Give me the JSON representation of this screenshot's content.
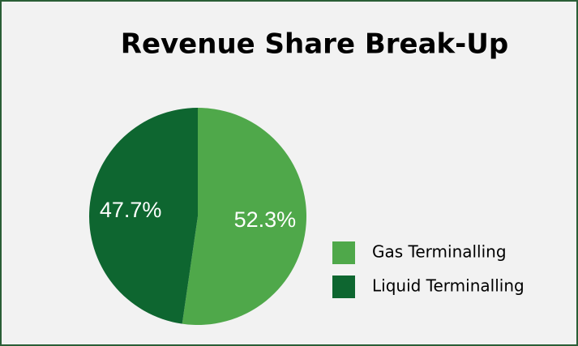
{
  "chart_data": {
    "type": "pie",
    "title": "Revenue Share Break-Up",
    "categories": [
      "Gas Terminalling",
      "Liquid Terminalling"
    ],
    "values": [
      52.3,
      47.7
    ],
    "value_labels": [
      "52.3%",
      "47.7%"
    ],
    "colors": [
      "#4fa84a",
      "#0e6630"
    ],
    "legend": "right"
  }
}
